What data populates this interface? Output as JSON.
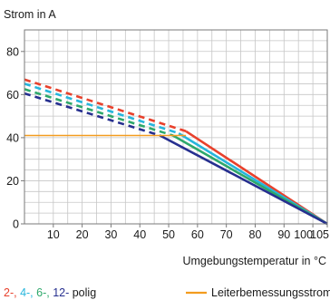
{
  "chart_data": {
    "type": "line",
    "ylabel": "Strom in A",
    "xlabel": "Umgebungstemperatur in °C",
    "xlim": [
      0,
      105
    ],
    "ylim": [
      0,
      90
    ],
    "x_ticks": [
      "10",
      "20",
      "30",
      "40",
      "50",
      "60",
      "70",
      "80",
      "90",
      "100",
      "105"
    ],
    "y_ticks": [
      "0",
      "20",
      "40",
      "60",
      "80"
    ],
    "grid": true,
    "series": [
      {
        "name": "2-",
        "color": "#e8412c",
        "dashed_points": [
          [
            0,
            67
          ],
          [
            56,
            43
          ]
        ],
        "solid_points": [
          [
            56,
            43
          ],
          [
            105,
            0
          ]
        ]
      },
      {
        "name": "4-",
        "color": "#26b5dc",
        "dashed_points": [
          [
            0,
            65
          ],
          [
            53.5,
            42
          ]
        ],
        "solid_points": [
          [
            53.5,
            42
          ],
          [
            105,
            0
          ]
        ]
      },
      {
        "name": "6-",
        "color": "#2ea86b",
        "dashed_points": [
          [
            0,
            62.5
          ],
          [
            51.5,
            41
          ]
        ],
        "solid_points": [
          [
            51.5,
            41
          ],
          [
            105,
            0
          ]
        ]
      },
      {
        "name": "12- polig",
        "color": "#262f8f",
        "dashed_points": [
          [
            0,
            60.5
          ],
          [
            47,
            41
          ]
        ],
        "solid_points": [
          [
            47,
            41
          ],
          [
            105,
            0
          ]
        ]
      },
      {
        "name": "Leiterbemessungsstrom",
        "color": "#f39c1f",
        "solid_points": [
          [
            0,
            41
          ],
          [
            56,
            41
          ]
        ]
      }
    ],
    "legend": {
      "placement": "bottom",
      "pole_items": [
        {
          "text": "2-",
          "color": "#e8412c"
        },
        {
          "text": "4-",
          "color": "#26b5dc"
        },
        {
          "text": "6-",
          "color": "#2ea86b"
        },
        {
          "text": "12-",
          "color": "#262f8f"
        },
        {
          "text": "polig",
          "color": "#1a1a1a"
        }
      ],
      "rated_current": {
        "text": "Leiterbemessungsstrom",
        "color": "#f39c1f"
      }
    }
  }
}
